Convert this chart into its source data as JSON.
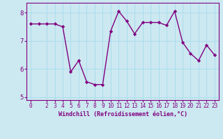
{
  "x": [
    0,
    1,
    2,
    3,
    4,
    5,
    6,
    7,
    8,
    9,
    10,
    11,
    12,
    13,
    14,
    15,
    16,
    17,
    18,
    19,
    20,
    21,
    22,
    23
  ],
  "y": [
    7.6,
    7.6,
    7.6,
    7.6,
    7.5,
    5.9,
    6.3,
    5.55,
    5.45,
    5.45,
    7.35,
    8.05,
    7.7,
    7.25,
    7.65,
    7.65,
    7.65,
    7.55,
    8.05,
    6.95,
    6.55,
    6.3,
    6.85,
    6.5
  ],
  "line_color": "#800080",
  "marker": "D",
  "marker_size": 2.2,
  "line_width": 1.0,
  "bg_color": "#cce8f0",
  "grid_color": "#aaddee",
  "xlabel": "Windchill (Refroidissement éolien,°C)",
  "xlabel_color": "#800080",
  "tick_color": "#800080",
  "label_color": "#800080",
  "ylim": [
    4.9,
    8.35
  ],
  "xlim": [
    -0.5,
    23.5
  ],
  "yticks": [
    5,
    6,
    7,
    8
  ],
  "xticks": [
    0,
    2,
    3,
    4,
    5,
    6,
    7,
    8,
    9,
    10,
    11,
    12,
    13,
    14,
    15,
    16,
    17,
    18,
    19,
    20,
    21,
    22,
    23
  ],
  "tick_fontsize": 5.5,
  "xlabel_fontsize": 6.0,
  "spine_color": "#800080"
}
